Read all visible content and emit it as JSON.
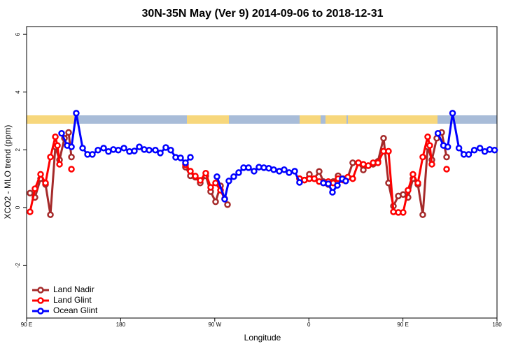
{
  "chart_data": {
    "type": "line",
    "title": "30N-35N May (Ver 9)   2014-09-06 to 2018-12-31",
    "x_label": "Longitude",
    "y_label": "XCO2 - MLO trend (ppm)",
    "xlim": [
      90,
      540
    ],
    "xticks": [
      {
        "value": 90,
        "label": "90 E"
      },
      {
        "value": 180,
        "label": "180"
      },
      {
        "value": 270,
        "label": "90 W"
      },
      {
        "value": 360,
        "label": "0"
      },
      {
        "value": 450,
        "label": "90 E"
      },
      {
        "value": 540,
        "label": "180"
      }
    ],
    "ylim": [
      -3.83,
      6.27
    ],
    "yticks": [
      -2,
      0,
      2,
      4,
      6
    ],
    "legend": "bottom-left",
    "series": [
      {
        "name": "Land Nadir",
        "color": "#a52a2a",
        "x": [
          93.3,
          98,
          103.4,
          108.1,
          112.8,
          117.5,
          121.5,
          126.2,
          130.2,
          132.9,
          200,
          242,
          246.7,
          251.4,
          256.1,
          261.4,
          266.1,
          270.8,
          275.5,
          279.5,
          282.2,
          300,
          351.1,
          355.8,
          360.5,
          365.2,
          369.9,
          373.9,
          378.6,
          383.3,
          388,
          392.7,
          397.3,
          402,
          407.4,
          412.1,
          416.8,
          421.5,
          426.1,
          431.5,
          436.2,
          440.9,
          445.6,
          450.2,
          454.9,
          459.6,
          464.3,
          469,
          473.7,
          477.7,
          482.4,
          487.1,
          491.8
        ],
        "values": [
          0.5,
          0.35,
          1.0,
          0.8,
          -0.25,
          2.1,
          1.65,
          2.4,
          2.6,
          1.75,
          null,
          1.4,
          1.1,
          1.05,
          0.85,
          1.1,
          0.55,
          0.2,
          0.75,
          0.3,
          0.1,
          null,
          1.0,
          0.95,
          1.15,
          1.0,
          1.25,
          0.9,
          0.8,
          0.9,
          1.1,
          1.0,
          1.05,
          1.55,
          1.55,
          1.3,
          1.45,
          1.5,
          1.6,
          2.4,
          0.85,
          0.05,
          0.4,
          0.45,
          0.35,
          1.0,
          0.8,
          -0.25,
          2.1,
          1.65,
          2.4,
          2.6,
          1.75
        ]
      },
      {
        "name": "Land Glint",
        "color": "#ff0000",
        "x": [
          93.3,
          98,
          103.4,
          108.1,
          112.8,
          117.5,
          119.5,
          121.5,
          127,
          132.9,
          200,
          242,
          246.7,
          251.4,
          256.1,
          261.4,
          266.1,
          270.8,
          275.5,
          279.5,
          300,
          351.1,
          355.8,
          360.5,
          365.2,
          369.9,
          373.9,
          378.6,
          383.3,
          388,
          392.7,
          397.3,
          402,
          407.4,
          412.1,
          416.8,
          421.5,
          426.1,
          431.5,
          436.2,
          440.9,
          445.6,
          450.2,
          454.9,
          459.6,
          464.3,
          469,
          473.7,
          475.7,
          477.7,
          485,
          491.8
        ],
        "values": [
          -0.15,
          0.65,
          1.15,
          0.85,
          1.75,
          2.45,
          2.15,
          1.5,
          null,
          1.33,
          null,
          1.48,
          1.26,
          1.09,
          0.94,
          1.19,
          0.7,
          0.85,
          0.6,
          0.3,
          null,
          1.0,
          0.95,
          1.0,
          1.0,
          0.9,
          0.85,
          0.9,
          0.85,
          1.0,
          0.95,
          1.05,
          1.0,
          1.55,
          1.5,
          1.45,
          1.55,
          1.55,
          1.95,
          1.95,
          -0.15,
          -0.17,
          -0.17,
          0.6,
          1.15,
          0.85,
          1.75,
          2.45,
          2.15,
          1.5,
          null,
          1.33
        ]
      },
      {
        "name": "Ocean Glint",
        "color": "#0000ff",
        "x": [
          123.5,
          128.8,
          132.9,
          137.5,
          143.6,
          148.3,
          152.9,
          158.3,
          163.7,
          168.3,
          173,
          177.7,
          183.1,
          188.4,
          193.1,
          197.8,
          202.5,
          207.2,
          213.2,
          217.9,
          223.2,
          227.9,
          232.6,
          237.3,
          242,
          246.7,
          260,
          272.1,
          279.5,
          283.5,
          288.2,
          292.9,
          297.6,
          302.3,
          307.6,
          312.3,
          317,
          321.7,
          326.4,
          331.7,
          336.4,
          341.1,
          346.5,
          351.1,
          360,
          373.9,
          378.6,
          382.6,
          387.3,
          392,
          395.3,
          440,
          483.5,
          488.8,
          492.9,
          497.5,
          503.6,
          508.3,
          512.9,
          518.3,
          523.7,
          528.3,
          533,
          537.7
        ],
        "values": [
          2.57,
          2.15,
          2.1,
          3.27,
          2.06,
          1.84,
          1.84,
          1.99,
          2.06,
          1.94,
          2.01,
          1.99,
          2.06,
          1.94,
          1.96,
          2.1,
          2.01,
          1.99,
          1.99,
          1.89,
          2.08,
          1.99,
          1.74,
          1.72,
          1.55,
          1.74,
          null,
          1.07,
          0.29,
          0.92,
          1.07,
          1.21,
          1.38,
          1.38,
          1.26,
          1.4,
          1.38,
          1.36,
          1.31,
          1.26,
          1.31,
          1.21,
          1.26,
          0.87,
          null,
          0.85,
          0.82,
          0.53,
          0.77,
          0.99,
          0.92,
          null,
          2.57,
          2.15,
          2.1,
          3.27,
          2.06,
          1.84,
          1.84,
          1.99,
          2.06,
          1.94,
          2.01,
          1.99
        ]
      }
    ]
  }
}
